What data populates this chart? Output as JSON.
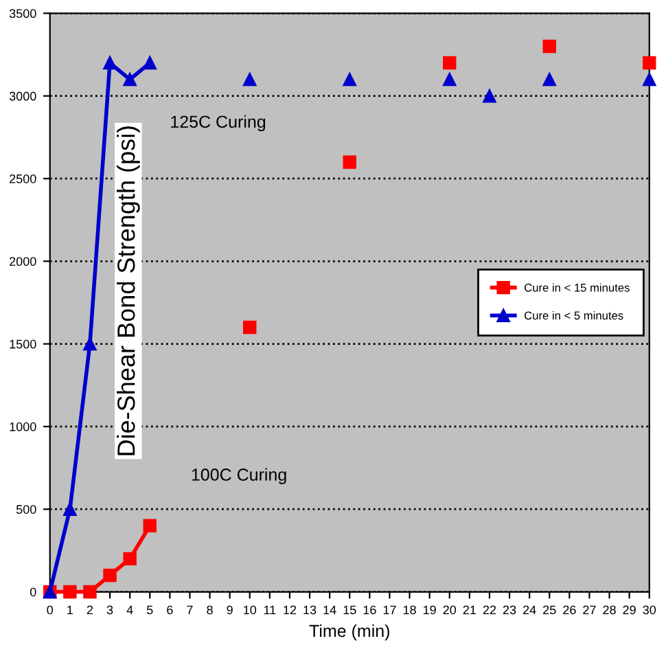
{
  "chart_data": {
    "type": "line",
    "xlabel": "Time (min)",
    "ylabel": "Die-Shear Bond Strength (psi)",
    "x": [
      0,
      1,
      2,
      3,
      4,
      5,
      6,
      7,
      8,
      9,
      10,
      11,
      12,
      13,
      14,
      15,
      16,
      17,
      18,
      19,
      20,
      21,
      22,
      23,
      24,
      25,
      26,
      27,
      28,
      29,
      30
    ],
    "series": [
      {
        "name": "Cure in < 15 minutes",
        "color": "#ff0000",
        "marker": "square",
        "values": [
          0,
          0,
          0,
          100,
          200,
          400,
          null,
          null,
          null,
          null,
          1600,
          null,
          null,
          null,
          null,
          2600,
          null,
          null,
          null,
          null,
          3200,
          null,
          null,
          null,
          null,
          3300,
          null,
          null,
          null,
          null,
          3200
        ]
      },
      {
        "name": "Cure in < 5 minutes",
        "color": "#0000cc",
        "marker": "triangle",
        "values": [
          0,
          500,
          1500,
          3200,
          3100,
          3200,
          null,
          null,
          null,
          null,
          3100,
          null,
          null,
          null,
          null,
          3100,
          null,
          null,
          null,
          null,
          3100,
          null,
          3000,
          null,
          null,
          3100,
          null,
          null,
          null,
          null,
          3100
        ]
      }
    ],
    "xlim": [
      0,
      30
    ],
    "xticks": [
      0,
      1,
      2,
      3,
      4,
      5,
      6,
      7,
      8,
      9,
      10,
      11,
      12,
      13,
      14,
      15,
      16,
      17,
      18,
      19,
      20,
      21,
      22,
      23,
      24,
      25,
      26,
      27,
      28,
      29,
      30
    ],
    "ylim": [
      0,
      3500
    ],
    "yticks": [
      0,
      500,
      1000,
      1500,
      2000,
      2500,
      3000,
      3500
    ],
    "grid": "y",
    "legend": "right",
    "line_style": "solid",
    "annotations": [
      "125C Curing",
      "100C Curing"
    ]
  }
}
